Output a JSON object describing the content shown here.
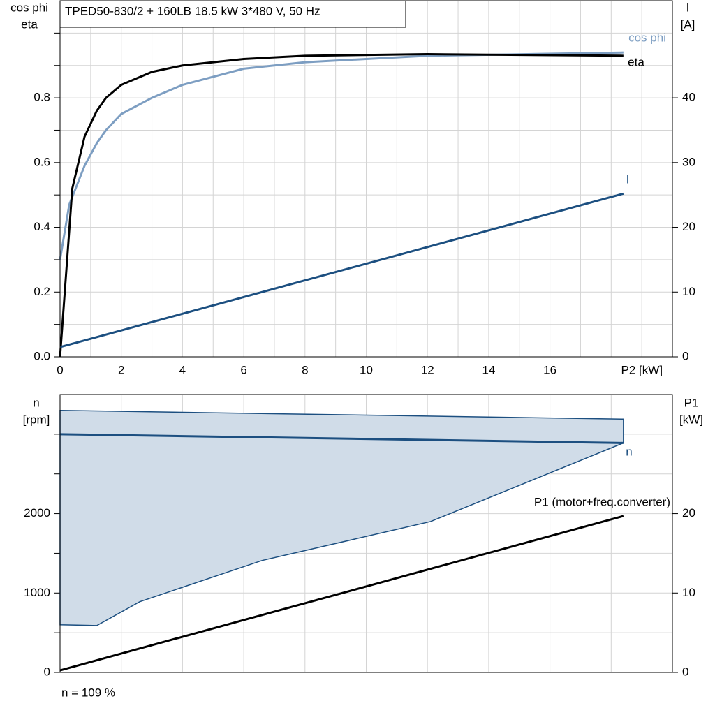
{
  "chart_data": [
    {
      "type": "line",
      "title": "TPED50-830/2 + 160LB   18.5 kW   3*480 V, 50 Hz",
      "ylabel": [
        "cos phi",
        "eta"
      ],
      "y2label": [
        "I",
        "[A]"
      ],
      "xlim": [
        0,
        20
      ],
      "xticks": [
        0,
        2,
        4,
        6,
        8,
        10,
        12,
        14,
        16,
        {
          "value": 18,
          "label": "P2 [kW]"
        }
      ],
      "xgrid": [
        1,
        3,
        5,
        7,
        9,
        11,
        13,
        15,
        17,
        19
      ],
      "ylim": [
        0,
        1.1
      ],
      "yticks": [
        {
          "value": 0,
          "label": "0.0"
        },
        0.2,
        0.4,
        0.6,
        0.8
      ],
      "ygrid": [
        0.1,
        0.3,
        0.5,
        0.7,
        0.9,
        1.0
      ],
      "y2lim": [
        0,
        55
      ],
      "y2ticks": [
        0,
        10,
        20,
        30,
        40
      ],
      "series": [
        {
          "name": "cos phi",
          "color": "#7d9ec2",
          "x": [
            0,
            0.3,
            0.8,
            1.2,
            1.5,
            2,
            3,
            4,
            6,
            8,
            12,
            18.4
          ],
          "values": [
            0.3,
            0.47,
            0.59,
            0.66,
            0.7,
            0.75,
            0.8,
            0.84,
            0.89,
            0.91,
            0.93,
            0.94
          ]
        },
        {
          "name": "eta",
          "color": "#000000",
          "x": [
            0,
            0.4,
            0.8,
            1.2,
            1.5,
            2,
            3,
            4,
            6,
            8,
            12,
            18.4
          ],
          "values": [
            0,
            0.52,
            0.68,
            0.76,
            0.8,
            0.84,
            0.88,
            0.9,
            0.92,
            0.93,
            0.935,
            0.93
          ]
        },
        {
          "name": "I",
          "color": "#1c4f80",
          "axis": "y2",
          "x": [
            0,
            18.4
          ],
          "values": [
            1.5,
            25.2
          ]
        }
      ]
    },
    {
      "type": "line",
      "ylabel": [
        "n",
        "[rpm]"
      ],
      "y2label": [
        "P1",
        "[kW]"
      ],
      "xlim": [
        0,
        20
      ],
      "xgrid": [
        2,
        4,
        6,
        8,
        10,
        12,
        14,
        16,
        18
      ],
      "ylim": [
        0,
        3500
      ],
      "yticks": [
        0,
        1000,
        2000
      ],
      "ygrid": [
        500,
        1500,
        2500,
        3000
      ],
      "y2lim": [
        0,
        35
      ],
      "y2ticks": [
        0,
        10,
        20
      ],
      "area": {
        "color": "#d0dce8",
        "x_upper": [
          0,
          18.4
        ],
        "upper": [
          3300,
          3190
        ],
        "x_lower": [
          0,
          1.2,
          2.6,
          6.6,
          12.1,
          18.4
        ],
        "lower": [
          600,
          590,
          890,
          1410,
          1900,
          2890
        ]
      },
      "series": [
        {
          "name": "n",
          "color": "#1c4f80",
          "x": [
            0,
            18.4
          ],
          "values": [
            3000,
            2890
          ]
        },
        {
          "name": "P1 (motor+freq.converter)",
          "color": "#000000",
          "axis": "y2",
          "x": [
            0,
            18.4
          ],
          "values": [
            0.26,
            19.7
          ]
        }
      ],
      "note": "n = 109 %"
    }
  ]
}
